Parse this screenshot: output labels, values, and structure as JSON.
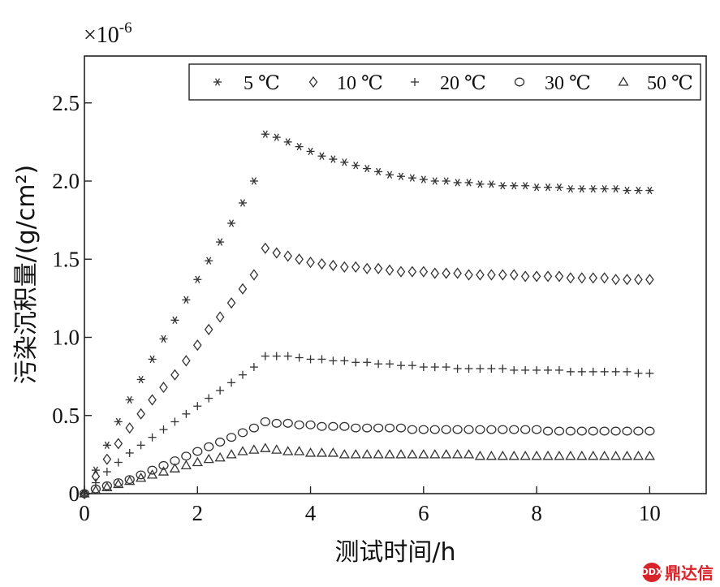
{
  "chart_data": {
    "type": "scatter",
    "title": "",
    "xlabel": "测试时间/h",
    "ylabel": "污染沉积量/(g/cm²)",
    "y_multiplier_label": "×10",
    "y_multiplier_exponent": "-6",
    "xlim": [
      0,
      11
    ],
    "ylim": [
      0,
      2.8
    ],
    "x_ticks": [
      0,
      2,
      4,
      6,
      8,
      10
    ],
    "x_tick_labels": [
      "0",
      "2",
      "4",
      "6",
      "8",
      "10"
    ],
    "y_ticks": [
      0,
      0.5,
      1.0,
      1.5,
      2.0,
      2.5
    ],
    "y_tick_labels": [
      "0",
      "0.5",
      "1.0",
      "1.5",
      "2.0",
      "2.5"
    ],
    "grid": false,
    "legend_position": "top-right",
    "sampling_interval_h": 0.2,
    "series": [
      {
        "name": "5 ℃",
        "marker": "asterisk",
        "points": [
          [
            0,
            0
          ],
          [
            0.2,
            0.15
          ],
          [
            0.4,
            0.31
          ],
          [
            0.6,
            0.46
          ],
          [
            0.8,
            0.6
          ],
          [
            1.0,
            0.73
          ],
          [
            1.2,
            0.86
          ],
          [
            1.4,
            0.99
          ],
          [
            1.6,
            1.11
          ],
          [
            1.8,
            1.24
          ],
          [
            2.0,
            1.37
          ],
          [
            2.2,
            1.49
          ],
          [
            2.4,
            1.61
          ],
          [
            2.6,
            1.73
          ],
          [
            2.8,
            1.86
          ],
          [
            3.0,
            2.0
          ],
          [
            3.2,
            2.3
          ],
          [
            3.4,
            2.28
          ],
          [
            3.6,
            2.25
          ],
          [
            3.8,
            2.22
          ],
          [
            4.0,
            2.19
          ],
          [
            4.2,
            2.16
          ],
          [
            4.4,
            2.14
          ],
          [
            4.6,
            2.12
          ],
          [
            4.8,
            2.1
          ],
          [
            5.0,
            2.08
          ],
          [
            5.2,
            2.06
          ],
          [
            5.4,
            2.04
          ],
          [
            5.6,
            2.03
          ],
          [
            5.8,
            2.02
          ],
          [
            6.0,
            2.01
          ],
          [
            6.2,
            2.0
          ],
          [
            6.4,
            2.0
          ],
          [
            6.6,
            1.99
          ],
          [
            6.8,
            1.99
          ],
          [
            7.0,
            1.98
          ],
          [
            7.2,
            1.98
          ],
          [
            7.4,
            1.97
          ],
          [
            7.6,
            1.97
          ],
          [
            7.8,
            1.97
          ],
          [
            8.0,
            1.96
          ],
          [
            8.2,
            1.96
          ],
          [
            8.4,
            1.96
          ],
          [
            8.6,
            1.95
          ],
          [
            8.8,
            1.95
          ],
          [
            9.0,
            1.95
          ],
          [
            9.2,
            1.95
          ],
          [
            9.4,
            1.95
          ],
          [
            9.6,
            1.94
          ],
          [
            9.8,
            1.94
          ],
          [
            10.0,
            1.94
          ]
        ]
      },
      {
        "name": "10 ℃",
        "marker": "diamond",
        "points": [
          [
            0,
            0
          ],
          [
            0.2,
            0.11
          ],
          [
            0.4,
            0.22
          ],
          [
            0.6,
            0.32
          ],
          [
            0.8,
            0.42
          ],
          [
            1.0,
            0.51
          ],
          [
            1.2,
            0.6
          ],
          [
            1.4,
            0.68
          ],
          [
            1.6,
            0.76
          ],
          [
            1.8,
            0.85
          ],
          [
            2.0,
            0.95
          ],
          [
            2.2,
            1.05
          ],
          [
            2.4,
            1.13
          ],
          [
            2.6,
            1.22
          ],
          [
            2.8,
            1.31
          ],
          [
            3.0,
            1.4
          ],
          [
            3.2,
            1.57
          ],
          [
            3.4,
            1.54
          ],
          [
            3.6,
            1.52
          ],
          [
            3.8,
            1.5
          ],
          [
            4.0,
            1.48
          ],
          [
            4.2,
            1.47
          ],
          [
            4.4,
            1.46
          ],
          [
            4.6,
            1.45
          ],
          [
            4.8,
            1.45
          ],
          [
            5.0,
            1.44
          ],
          [
            5.2,
            1.44
          ],
          [
            5.4,
            1.43
          ],
          [
            5.6,
            1.42
          ],
          [
            5.8,
            1.42
          ],
          [
            6.0,
            1.42
          ],
          [
            6.2,
            1.41
          ],
          [
            6.4,
            1.41
          ],
          [
            6.6,
            1.41
          ],
          [
            6.8,
            1.4
          ],
          [
            7.0,
            1.4
          ],
          [
            7.2,
            1.4
          ],
          [
            7.4,
            1.4
          ],
          [
            7.6,
            1.4
          ],
          [
            7.8,
            1.39
          ],
          [
            8.0,
            1.39
          ],
          [
            8.2,
            1.39
          ],
          [
            8.4,
            1.39
          ],
          [
            8.6,
            1.38
          ],
          [
            8.8,
            1.38
          ],
          [
            9.0,
            1.38
          ],
          [
            9.2,
            1.38
          ],
          [
            9.4,
            1.37
          ],
          [
            9.6,
            1.37
          ],
          [
            9.8,
            1.37
          ],
          [
            10.0,
            1.37
          ]
        ]
      },
      {
        "name": "20 ℃",
        "marker": "plus",
        "points": [
          [
            0,
            0
          ],
          [
            0.2,
            0.07
          ],
          [
            0.4,
            0.14
          ],
          [
            0.6,
            0.2
          ],
          [
            0.8,
            0.26
          ],
          [
            1.0,
            0.31
          ],
          [
            1.2,
            0.36
          ],
          [
            1.4,
            0.41
          ],
          [
            1.6,
            0.46
          ],
          [
            1.8,
            0.51
          ],
          [
            2.0,
            0.56
          ],
          [
            2.2,
            0.61
          ],
          [
            2.4,
            0.66
          ],
          [
            2.6,
            0.71
          ],
          [
            2.8,
            0.76
          ],
          [
            3.0,
            0.81
          ],
          [
            3.2,
            0.88
          ],
          [
            3.4,
            0.88
          ],
          [
            3.6,
            0.88
          ],
          [
            3.8,
            0.87
          ],
          [
            4.0,
            0.86
          ],
          [
            4.2,
            0.86
          ],
          [
            4.4,
            0.85
          ],
          [
            4.6,
            0.85
          ],
          [
            4.8,
            0.84
          ],
          [
            5.0,
            0.84
          ],
          [
            5.2,
            0.83
          ],
          [
            5.4,
            0.83
          ],
          [
            5.6,
            0.82
          ],
          [
            5.8,
            0.82
          ],
          [
            6.0,
            0.81
          ],
          [
            6.2,
            0.81
          ],
          [
            6.4,
            0.81
          ],
          [
            6.6,
            0.8
          ],
          [
            6.8,
            0.8
          ],
          [
            7.0,
            0.8
          ],
          [
            7.2,
            0.8
          ],
          [
            7.4,
            0.8
          ],
          [
            7.6,
            0.79
          ],
          [
            7.8,
            0.79
          ],
          [
            8.0,
            0.79
          ],
          [
            8.2,
            0.79
          ],
          [
            8.4,
            0.79
          ],
          [
            8.6,
            0.78
          ],
          [
            8.8,
            0.78
          ],
          [
            9.0,
            0.78
          ],
          [
            9.2,
            0.78
          ],
          [
            9.4,
            0.78
          ],
          [
            9.6,
            0.78
          ],
          [
            9.8,
            0.77
          ],
          [
            10.0,
            0.77
          ]
        ]
      },
      {
        "name": "30 ℃",
        "marker": "circle",
        "points": [
          [
            0,
            0
          ],
          [
            0.2,
            0.03
          ],
          [
            0.4,
            0.05
          ],
          [
            0.6,
            0.07
          ],
          [
            0.8,
            0.09
          ],
          [
            1.0,
            0.12
          ],
          [
            1.2,
            0.15
          ],
          [
            1.4,
            0.18
          ],
          [
            1.6,
            0.21
          ],
          [
            1.8,
            0.24
          ],
          [
            2.0,
            0.27
          ],
          [
            2.2,
            0.3
          ],
          [
            2.4,
            0.33
          ],
          [
            2.6,
            0.36
          ],
          [
            2.8,
            0.39
          ],
          [
            3.0,
            0.42
          ],
          [
            3.2,
            0.46
          ],
          [
            3.4,
            0.45
          ],
          [
            3.6,
            0.45
          ],
          [
            3.8,
            0.44
          ],
          [
            4.0,
            0.44
          ],
          [
            4.2,
            0.43
          ],
          [
            4.4,
            0.43
          ],
          [
            4.6,
            0.43
          ],
          [
            4.8,
            0.42
          ],
          [
            5.0,
            0.42
          ],
          [
            5.2,
            0.42
          ],
          [
            5.4,
            0.42
          ],
          [
            5.6,
            0.42
          ],
          [
            5.8,
            0.41
          ],
          [
            6.0,
            0.41
          ],
          [
            6.2,
            0.41
          ],
          [
            6.4,
            0.41
          ],
          [
            6.6,
            0.41
          ],
          [
            6.8,
            0.41
          ],
          [
            7.0,
            0.41
          ],
          [
            7.2,
            0.41
          ],
          [
            7.4,
            0.41
          ],
          [
            7.6,
            0.41
          ],
          [
            7.8,
            0.41
          ],
          [
            8.0,
            0.41
          ],
          [
            8.2,
            0.4
          ],
          [
            8.4,
            0.4
          ],
          [
            8.6,
            0.4
          ],
          [
            8.8,
            0.4
          ],
          [
            9.0,
            0.4
          ],
          [
            9.2,
            0.4
          ],
          [
            9.4,
            0.4
          ],
          [
            9.6,
            0.4
          ],
          [
            9.8,
            0.4
          ],
          [
            10.0,
            0.4
          ]
        ]
      },
      {
        "name": "50 ℃",
        "marker": "triangle",
        "points": [
          [
            0,
            0
          ],
          [
            0.2,
            0.02
          ],
          [
            0.4,
            0.04
          ],
          [
            0.6,
            0.06
          ],
          [
            0.8,
            0.08
          ],
          [
            1.0,
            0.1
          ],
          [
            1.2,
            0.12
          ],
          [
            1.4,
            0.14
          ],
          [
            1.6,
            0.16
          ],
          [
            1.8,
            0.18
          ],
          [
            2.0,
            0.2
          ],
          [
            2.2,
            0.22
          ],
          [
            2.4,
            0.23
          ],
          [
            2.6,
            0.25
          ],
          [
            2.8,
            0.27
          ],
          [
            3.0,
            0.28
          ],
          [
            3.2,
            0.29
          ],
          [
            3.4,
            0.28
          ],
          [
            3.6,
            0.27
          ],
          [
            3.8,
            0.27
          ],
          [
            4.0,
            0.26
          ],
          [
            4.2,
            0.26
          ],
          [
            4.4,
            0.26
          ],
          [
            4.6,
            0.25
          ],
          [
            4.8,
            0.25
          ],
          [
            5.0,
            0.25
          ],
          [
            5.2,
            0.25
          ],
          [
            5.4,
            0.25
          ],
          [
            5.6,
            0.25
          ],
          [
            5.8,
            0.25
          ],
          [
            6.0,
            0.25
          ],
          [
            6.2,
            0.25
          ],
          [
            6.4,
            0.25
          ],
          [
            6.6,
            0.25
          ],
          [
            6.8,
            0.25
          ],
          [
            7.0,
            0.24
          ],
          [
            7.2,
            0.24
          ],
          [
            7.4,
            0.24
          ],
          [
            7.6,
            0.24
          ],
          [
            7.8,
            0.24
          ],
          [
            8.0,
            0.24
          ],
          [
            8.2,
            0.24
          ],
          [
            8.4,
            0.24
          ],
          [
            8.6,
            0.24
          ],
          [
            8.8,
            0.24
          ],
          [
            9.0,
            0.24
          ],
          [
            9.2,
            0.24
          ],
          [
            9.4,
            0.24
          ],
          [
            9.6,
            0.24
          ],
          [
            9.8,
            0.24
          ],
          [
            10.0,
            0.24
          ]
        ]
      }
    ]
  },
  "watermark": {
    "logo_text": "DDX",
    "text": "鼎达信",
    "color": "#d8232a"
  }
}
